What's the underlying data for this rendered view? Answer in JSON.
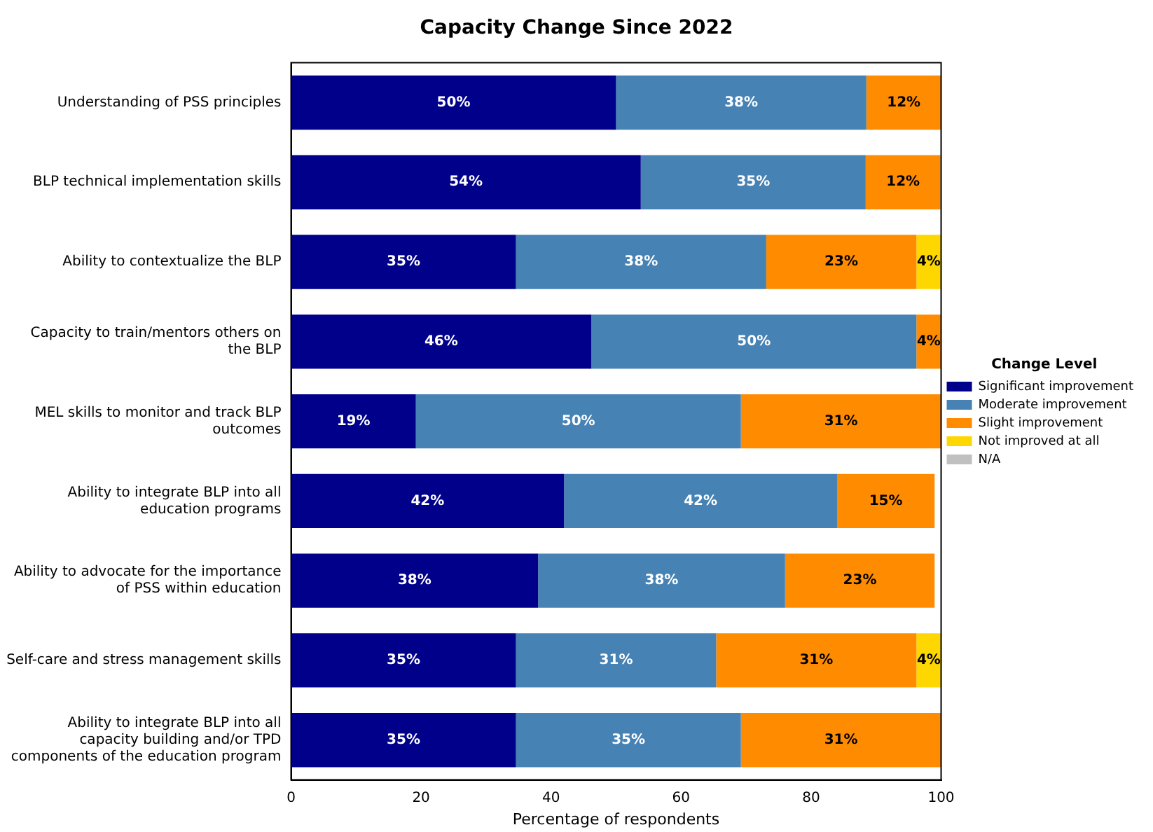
{
  "chart_data": {
    "type": "bar",
    "orientation": "horizontal",
    "stacked": true,
    "title": "Capacity Change Since 2022",
    "xlabel": "Percentage of respondents",
    "legend_title": "Change Level",
    "legend": "right",
    "categories": [
      "Understanding of PSS principles",
      "BLP technical implementation skills",
      "Ability to contextualize the BLP",
      "Capacity to train/mentors others on the BLP",
      "MEL skills to monitor and track BLP outcomes",
      "Ability to integrate BLP into all education programs",
      "Ability to advocate for the importance of PSS within education",
      "Self-care and stress management skills",
      "Ability to integrate BLP into all capacity building and/or TPD components of the education program"
    ],
    "xlim": [
      0,
      100
    ],
    "xticks": [
      0,
      20,
      40,
      60,
      80,
      100
    ],
    "grid": false,
    "series": [
      {
        "name": "Significant improvement",
        "color": "#00008b",
        "values": [
          50,
          53.8,
          34.6,
          46.2,
          19.2,
          42,
          38,
          34.6,
          34.6
        ],
        "value_labels": [
          "50%",
          "54%",
          "35%",
          "46%",
          "19%",
          "42%",
          "38%",
          "35%",
          "35%"
        ]
      },
      {
        "name": "Moderate improvement",
        "color": "#4682b4",
        "values": [
          38.5,
          34.6,
          38.5,
          50,
          50,
          42,
          38,
          30.8,
          34.6
        ],
        "value_labels": [
          "38%",
          "35%",
          "38%",
          "50%",
          "50%",
          "42%",
          "38%",
          "31%",
          "35%"
        ]
      },
      {
        "name": "Slight improvement",
        "color": "#ff8c00",
        "values": [
          11.5,
          11.5,
          23.1,
          3.8,
          30.8,
          15,
          23,
          30.8,
          30.8
        ],
        "value_labels": [
          "12%",
          "12%",
          "23%",
          "4%",
          "31%",
          "15%",
          "23%",
          "31%",
          "31%"
        ]
      },
      {
        "name": "Not improved at all",
        "color": "#ffd700",
        "values": [
          null,
          null,
          3.8,
          null,
          null,
          null,
          null,
          3.8,
          null
        ],
        "value_labels": [
          null,
          null,
          "4%",
          null,
          null,
          null,
          null,
          "4%",
          null
        ]
      },
      {
        "name": "N/A",
        "color": "#c0c0c0",
        "values": [
          null,
          null,
          null,
          null,
          null,
          null,
          null,
          null,
          null
        ],
        "value_labels": [
          null,
          null,
          null,
          null,
          null,
          null,
          null,
          null,
          null
        ]
      }
    ]
  }
}
